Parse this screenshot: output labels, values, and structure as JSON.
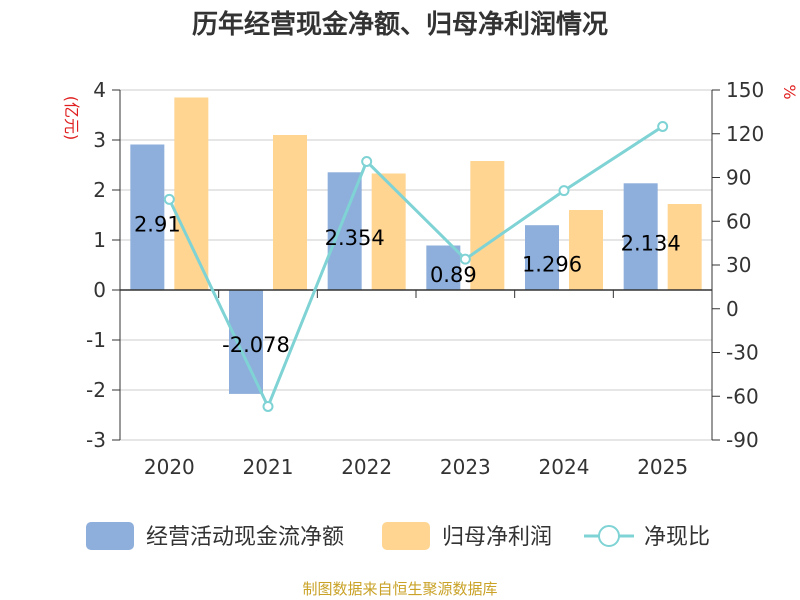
{
  "title": "历年经营现金净额、归母净利润情况",
  "source": "制图数据来自恒生聚源数据库",
  "chart_data": {
    "type": "bar",
    "categories": [
      "2020",
      "2021",
      "2022",
      "2023",
      "2024",
      "2025"
    ],
    "series": [
      {
        "name": "经营活动现金流净额",
        "type": "bar",
        "axis": "left",
        "color": "#8eaedb",
        "values": [
          2.91,
          -2.078,
          2.354,
          0.89,
          1.296,
          2.134
        ],
        "data_labels": [
          "2.91",
          "-2.078",
          "2.354",
          "0.89",
          "1.296",
          "2.134"
        ]
      },
      {
        "name": "归母净利润",
        "type": "bar",
        "axis": "left",
        "color": "#ffd591",
        "values": [
          3.85,
          3.1,
          2.33,
          2.58,
          1.6,
          1.72
        ]
      },
      {
        "name": "净现比",
        "type": "line",
        "axis": "right",
        "color": "#7fd3d5",
        "values": [
          75,
          -67,
          101,
          34,
          81,
          125
        ]
      }
    ],
    "left_axis": {
      "unit": "(亿元)",
      "ylim": [
        -3,
        4
      ],
      "ticks": [
        "4",
        "3",
        "2",
        "1",
        "0",
        "-1",
        "-2",
        "-3"
      ],
      "tick_values": [
        4,
        3,
        2,
        1,
        0,
        -1,
        -2,
        -3
      ]
    },
    "right_axis": {
      "unit": "%",
      "ylim": [
        -90,
        150
      ],
      "ticks": [
        "150",
        "120",
        "90",
        "60",
        "30",
        "0",
        "-30",
        "-60",
        "-90"
      ],
      "tick_values": [
        150,
        120,
        90,
        60,
        30,
        0,
        -30,
        -60,
        -90
      ]
    },
    "grid": true,
    "legend_position": "bottom"
  }
}
